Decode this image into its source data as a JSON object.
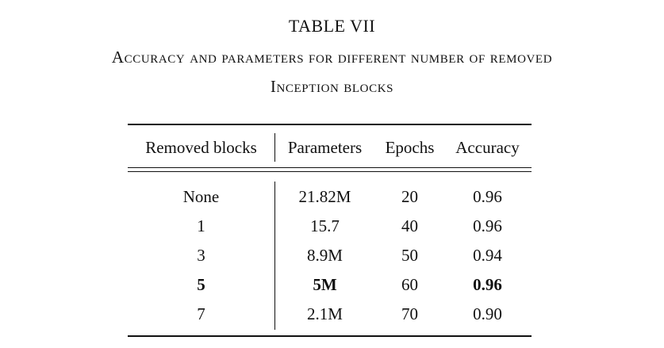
{
  "table": {
    "label": "TABLE VII",
    "caption_line_1": "Accuracy and parameters for different number of removed",
    "caption_line_2": "Inception blocks",
    "headers": [
      "Removed blocks",
      "Parameters",
      "Epochs",
      "Accuracy"
    ],
    "rows": [
      {
        "cells": [
          "None",
          "21.82M",
          "20",
          "0.96"
        ],
        "bold": [
          false,
          false,
          false,
          false
        ]
      },
      {
        "cells": [
          "1",
          "15.7",
          "40",
          "0.96"
        ],
        "bold": [
          false,
          false,
          false,
          false
        ]
      },
      {
        "cells": [
          "3",
          "8.9M",
          "50",
          "0.94"
        ],
        "bold": [
          false,
          false,
          false,
          false
        ]
      },
      {
        "cells": [
          "5",
          "5M",
          "60",
          "0.96"
        ],
        "bold": [
          true,
          true,
          false,
          true
        ]
      },
      {
        "cells": [
          "7",
          "2.1M",
          "70",
          "0.90"
        ],
        "bold": [
          false,
          false,
          false,
          false
        ]
      }
    ]
  }
}
